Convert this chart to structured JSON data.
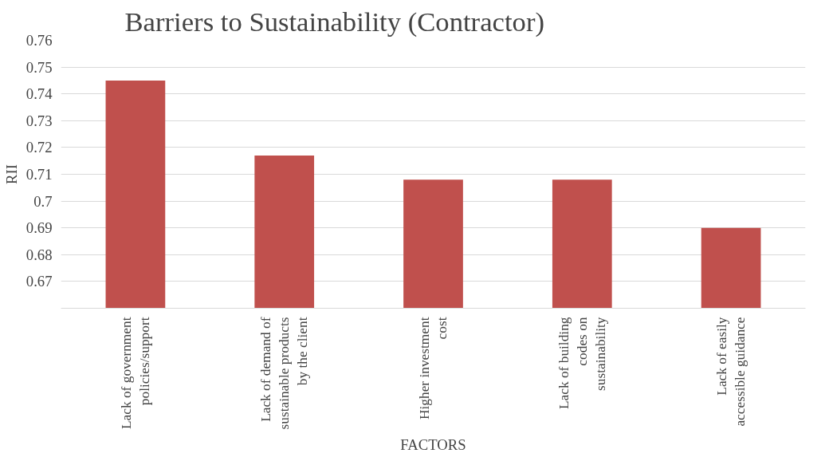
{
  "chart_data": {
    "type": "bar",
    "title": "Barriers to Sustainability (Contractor)",
    "xlabel": "FACTORS",
    "ylabel": "RII",
    "categories": [
      "Lack of government policies/support",
      "Lack of demand of sustainable products by the client",
      "Higher investment cost",
      "Lack of building codes on sustainability",
      "Lack of easily accessible guidance"
    ],
    "values": [
      0.745,
      0.717,
      0.708,
      0.708,
      0.69
    ],
    "color": "#c0504d",
    "ylim": [
      0.66,
      0.76
    ],
    "yticks": [
      {
        "value": 0.66,
        "label": null
      },
      0.67,
      0.68,
      0.69,
      0.7,
      0.71,
      0.72,
      0.73,
      0.74,
      0.75,
      0.76
    ],
    "grid": "y"
  }
}
